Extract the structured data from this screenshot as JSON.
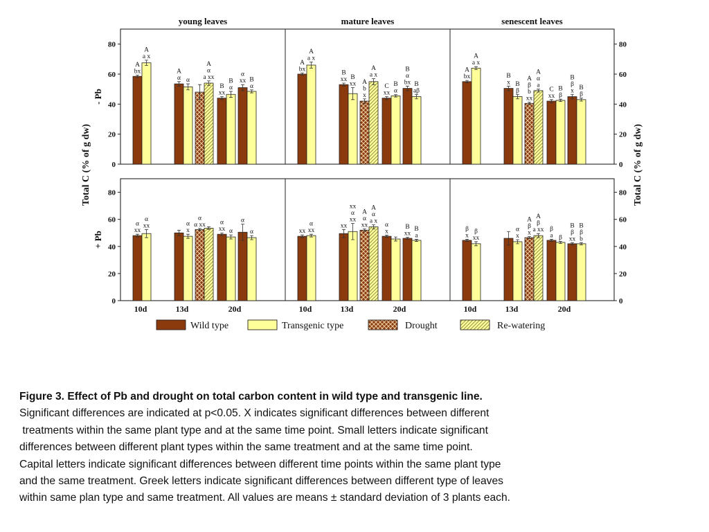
{
  "chart_data": {
    "type": "bar",
    "panel_titles": [
      "young leaves",
      "mature leaves",
      "senescent  leaves"
    ],
    "row_labels": [
      "- Pb",
      "+ Pb"
    ],
    "ylabel": "Total C (% of g dw)",
    "ylim": [
      0,
      90
    ],
    "yticks": [
      0,
      20,
      40,
      60,
      80
    ],
    "categories": [
      "10d",
      "13d",
      "20d"
    ],
    "legend": [
      "Wild type",
      "Transgenic type",
      "Drought",
      "Re-watering"
    ],
    "colors": {
      "wild": "#8B3A0E",
      "transgenic": "#FFFF99",
      "drought": "#7A2E0A",
      "rewater": "#F5F08A"
    },
    "panels": [
      {
        "row": "- Pb",
        "leaf": "young leaves",
        "values": [
          58.5,
          67.5,
          53.5,
          51.5,
          48,
          54,
          44,
          46.5,
          51,
          48.5
        ],
        "errors": [
          0.8,
          1.8,
          1.5,
          2,
          5,
          1.5,
          1,
          2,
          2,
          1
        ],
        "labels": [
          "A\nbx",
          "A\na x",
          "A\nα",
          "α",
          "",
          "A\nα\na xx",
          "B\nxx",
          "B\nα",
          "α\nxx",
          "B\nα"
        ]
      },
      {
        "row": "- Pb",
        "leaf": "mature leaves",
        "values": [
          60,
          66,
          53,
          47,
          42,
          55,
          44,
          45.5,
          50.5,
          45
        ],
        "errors": [
          0.8,
          2,
          1,
          4,
          1.5,
          2,
          1,
          0.8,
          1.5,
          1.5
        ],
        "labels": [
          "A\nbx",
          "A\na x",
          "B\nxx",
          "B\nxx",
          "A\nb\nx",
          "A\na x",
          "C\nxx",
          "B\nα",
          "B\nα\nbx",
          "B\naβ"
        ]
      },
      {
        "row": "- Pb",
        "leaf": "senescent  leaves",
        "values": [
          55,
          64,
          50.5,
          45,
          40.5,
          49,
          42,
          42.5,
          45,
          43
        ],
        "errors": [
          0.8,
          1,
          1.5,
          1.5,
          0.8,
          1,
          1,
          0.8,
          1.5,
          1
        ],
        "labels": [
          "A\nbx",
          "A\na x",
          "B\nx",
          "B\nβ",
          "A\nβ\nb\nxx",
          "A\nα\na",
          "C\nxx",
          "B\nβ",
          "B\nβ\nx",
          "B\nβ"
        ]
      },
      {
        "row": "+ Pb",
        "leaf": "young leaves",
        "values": [
          48,
          49.5,
          50,
          47.5,
          52.5,
          53.5,
          49,
          47,
          50.5,
          46.5
        ],
        "errors": [
          1,
          3,
          2,
          1.5,
          0.8,
          1,
          1,
          1.5,
          6,
          1.5
        ],
        "labels": [
          "α\nxx",
          "α\nxx",
          "",
          "α\nx",
          "α\nα xx",
          "",
          "α\nxx",
          "α",
          "α",
          "α"
        ]
      },
      {
        "row": "+ Pb",
        "leaf": "mature leaves",
        "values": [
          47.5,
          48,
          49.5,
          51,
          52,
          54.5,
          47.5,
          45.5,
          46,
          44.5
        ],
        "errors": [
          1,
          1,
          3,
          6,
          1,
          1.5,
          0.8,
          1.5,
          0.8,
          0.8
        ],
        "labels": [
          "xx",
          "α\nxx",
          "xx",
          "xx\nα\nxx",
          "A\nα\nxx",
          "A\nα\na x",
          "α\nx",
          "",
          "B\nxx",
          "B\na"
        ]
      },
      {
        "row": "+ Pb",
        "leaf": "senescent  leaves",
        "values": [
          44.5,
          42,
          46,
          43.5,
          46.5,
          48,
          44.5,
          43,
          42,
          42
        ],
        "errors": [
          0.8,
          1.5,
          5,
          1.5,
          0.8,
          1.5,
          0.8,
          0.8,
          0.8,
          0.8
        ],
        "labels": [
          "β\nx",
          "β\nxx",
          "",
          "α\nx",
          "A\nβ\nx",
          "A\nβ\na xx",
          "β\na",
          "β",
          "B\nβ\nxx",
          "B\nβ\nb"
        ]
      }
    ]
  },
  "caption": {
    "title": "Figure 3. Effect of Pb and drought on total carbon content in wild type and transgenic line.",
    "lines": [
      "Significant differences are indicated at p<0.05. X indicates significant differences between different",
      " treatments within the same plant type and at the same time point. Small letters indicate significant",
      "differences between different plant types within the same treatment and at the same time point.",
      "Capital letters indicate significant differences between different time points within the same plant type",
      "and the same treatment. Greek letters indicate significant differences between different type of leaves",
      "within same plan type and same treatment. All values are means ± standard deviation of 3 plants each."
    ]
  }
}
